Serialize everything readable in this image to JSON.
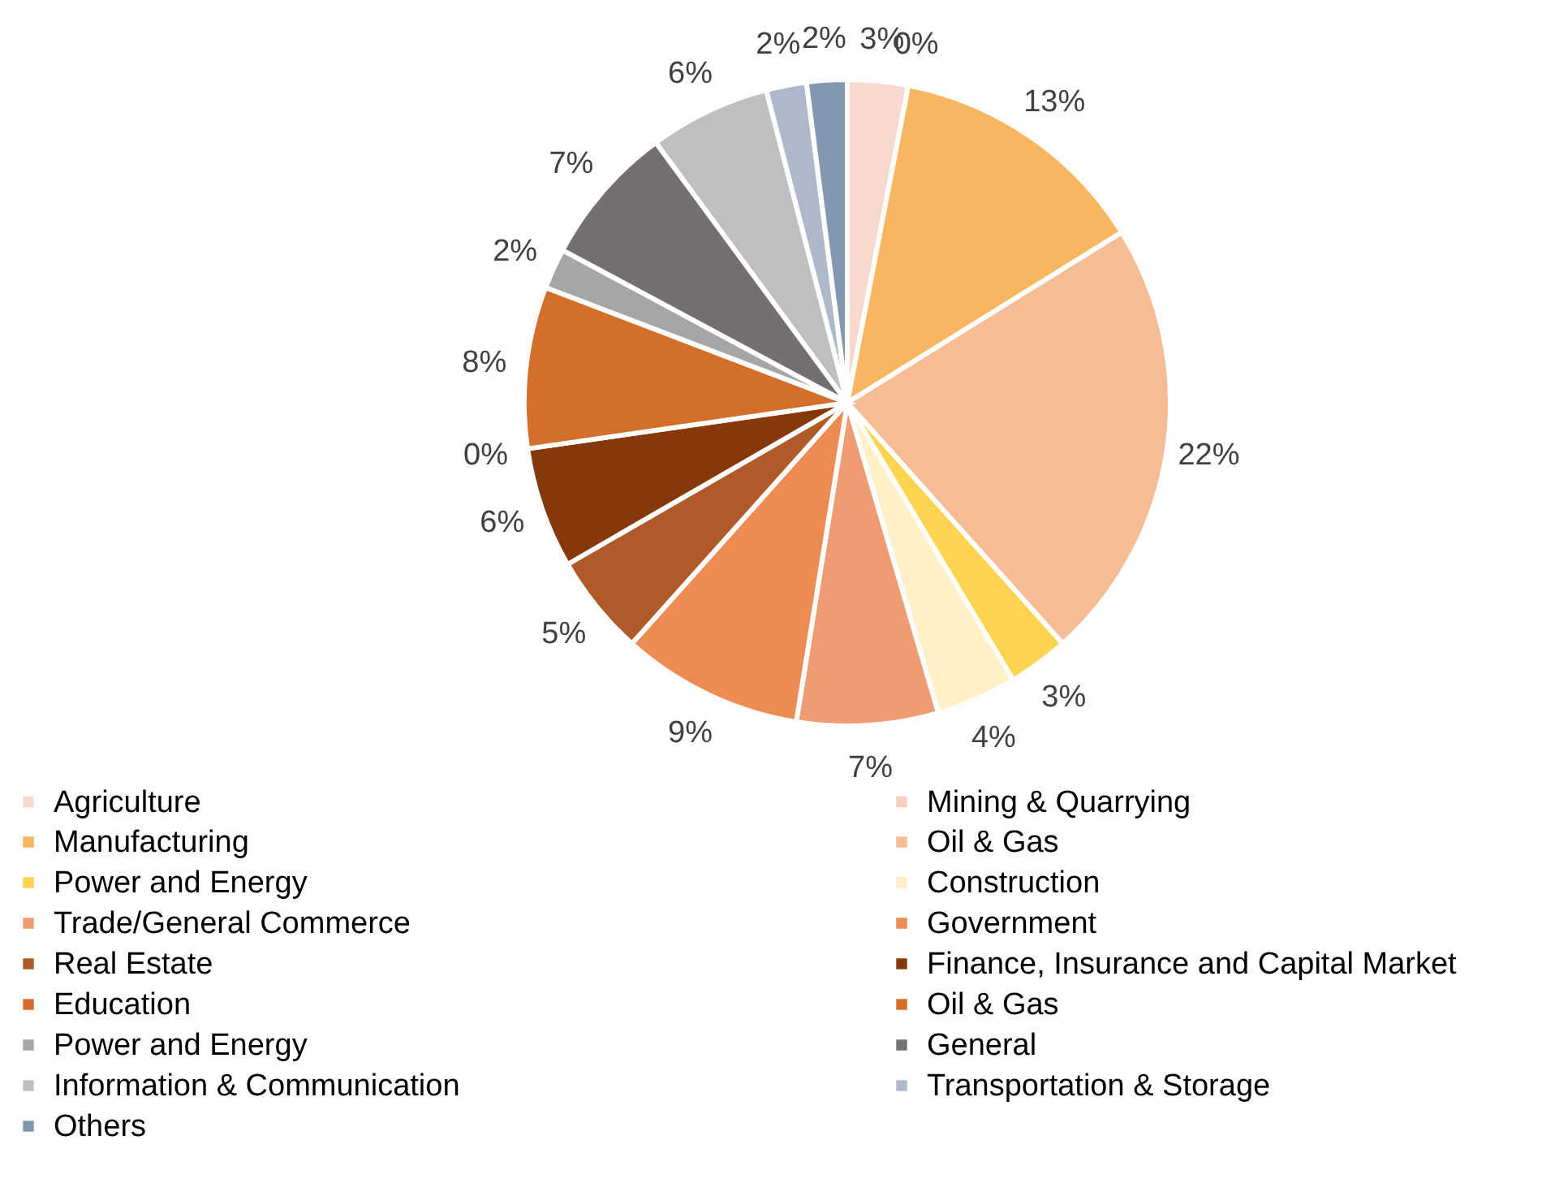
{
  "chart_data": {
    "type": "pie",
    "categories": [
      "Agriculture",
      "Mining & Quarrying",
      "Manufacturing",
      "Oil & Gas",
      "Power and Energy",
      "Construction",
      " Trade/General Commerce",
      " Government",
      "Real Estate",
      "Finance, Insurance and Capital Market",
      "Education",
      "Oil & Gas",
      "Power and Energy",
      " General",
      "Information & Communication",
      " Transportation & Storage",
      "Others"
    ],
    "values": [
      3,
      0,
      13,
      22,
      3,
      4,
      7,
      9,
      5,
      6,
      0,
      8,
      2,
      7,
      6,
      2,
      2
    ],
    "value_labels": [
      "3%",
      "0%",
      "13%",
      "22%",
      "3%",
      "4%",
      "7%",
      "9%",
      "5%",
      "6%",
      "0%",
      "8%",
      "2%",
      "7%",
      "6%",
      "2%",
      "2%"
    ],
    "colors": [
      "#f8d9d0",
      "#f6cfc2",
      "#f9b660",
      "#f5bc96",
      "#fcd450",
      "#fff0c8",
      "#ef9c72",
      "#ee8b52",
      "#b05a2a",
      "#86380b",
      "#d56c2a",
      "#d36f2a",
      "#a6a6a6",
      "#747070",
      "#bfbfbf",
      "#adb9ca",
      "#8497b0"
    ],
    "legend": "bottom"
  }
}
